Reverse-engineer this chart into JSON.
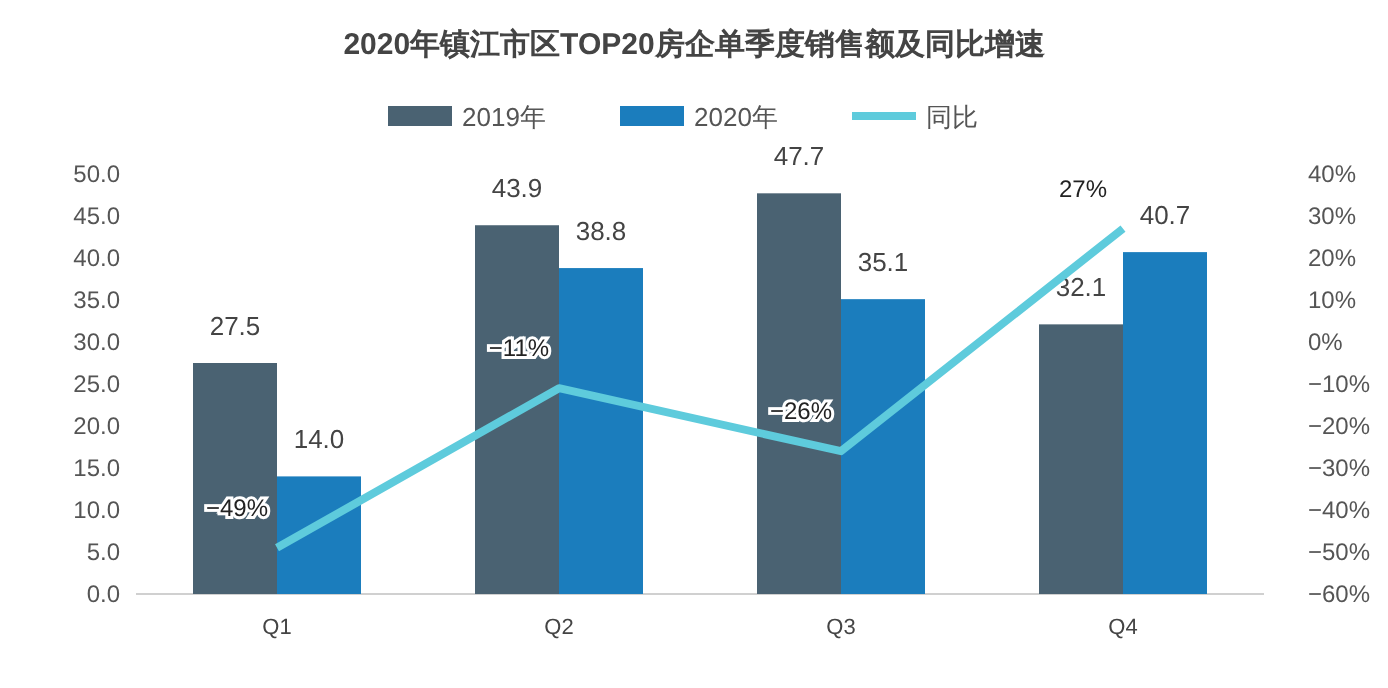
{
  "chart_data": {
    "type": "bar",
    "title": "2020年镇江市区TOP20房企单季度销售额及同比增速",
    "categories": [
      "Q1",
      "Q2",
      "Q3",
      "Q4"
    ],
    "series": [
      {
        "name": "2019年",
        "color": "#4a6272",
        "values": [
          27.5,
          43.9,
          47.7,
          32.1
        ],
        "value_labels": [
          "27.5",
          "43.9",
          "47.7",
          "32.1"
        ]
      },
      {
        "name": "2020年",
        "color": "#1b7dbd",
        "values": [
          14.0,
          38.8,
          35.1,
          40.7
        ],
        "value_labels": [
          "14.0",
          "38.8",
          "35.1",
          "40.7"
        ]
      },
      {
        "name": "同比",
        "type": "line",
        "axis": "y2",
        "color": "#5ecbdc",
        "values": [
          -49,
          -11,
          -26,
          27
        ],
        "value_labels": [
          "−49%",
          "−11%",
          "−26%",
          "27%"
        ]
      }
    ],
    "ylim": [
      0,
      50
    ],
    "yticks": [
      {
        "value": 0,
        "label": "0.0"
      },
      {
        "value": 5,
        "label": "5.0"
      },
      {
        "value": 10,
        "label": "10.0"
      },
      {
        "value": 15,
        "label": "15.0"
      },
      {
        "value": 20,
        "label": "20.0"
      },
      {
        "value": 25,
        "label": "25.0"
      },
      {
        "value": 30,
        "label": "30.0"
      },
      {
        "value": 35,
        "label": "35.0"
      },
      {
        "value": 40,
        "label": "40.0"
      },
      {
        "value": 45,
        "label": "45.0"
      },
      {
        "value": 50,
        "label": "50.0"
      }
    ],
    "y2lim": [
      -60,
      40
    ],
    "y2ticks": [
      {
        "value": -60,
        "label": "−60%"
      },
      {
        "value": -50,
        "label": "−50%"
      },
      {
        "value": -40,
        "label": "−40%"
      },
      {
        "value": -30,
        "label": "−30%"
      },
      {
        "value": -20,
        "label": "−20%"
      },
      {
        "value": -10,
        "label": "−10%"
      },
      {
        "value": 0,
        "label": "0%"
      },
      {
        "value": 10,
        "label": "10%"
      },
      {
        "value": 20,
        "label": "20%"
      },
      {
        "value": 30,
        "label": "30%"
      },
      {
        "value": 40,
        "label": "40%"
      }
    ],
    "legend": "top",
    "grid": false,
    "marker": "none"
  }
}
